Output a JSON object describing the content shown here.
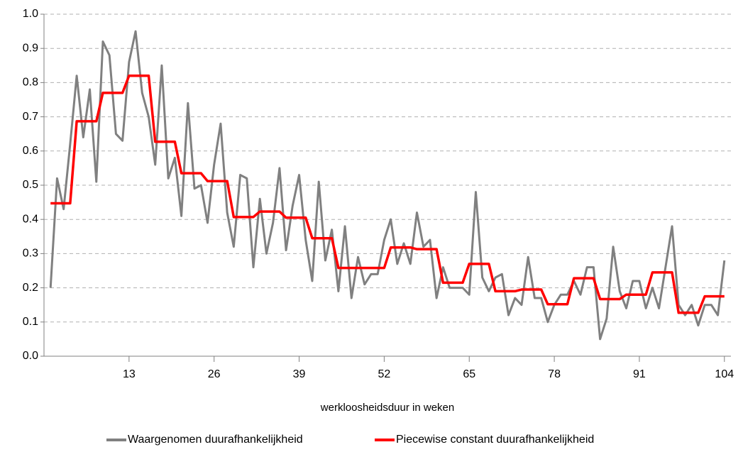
{
  "chart_data": {
    "type": "line",
    "x_label": "werkloosheidsduur in weken",
    "x": [
      1,
      2,
      3,
      4,
      5,
      6,
      7,
      8,
      9,
      10,
      11,
      12,
      13,
      14,
      15,
      16,
      17,
      18,
      19,
      20,
      21,
      22,
      23,
      24,
      25,
      26,
      27,
      28,
      29,
      30,
      31,
      32,
      33,
      34,
      35,
      36,
      37,
      38,
      39,
      40,
      41,
      42,
      43,
      44,
      45,
      46,
      47,
      48,
      49,
      50,
      51,
      52,
      53,
      54,
      55,
      56,
      57,
      58,
      59,
      60,
      61,
      62,
      63,
      64,
      65,
      66,
      67,
      68,
      69,
      70,
      71,
      72,
      73,
      74,
      75,
      76,
      77,
      78,
      79,
      80,
      81,
      82,
      83,
      84,
      85,
      86,
      87,
      88,
      89,
      90,
      91,
      92,
      93,
      94,
      95,
      96,
      97,
      98,
      99,
      100,
      101,
      102,
      103,
      104
    ],
    "series": [
      {
        "name": "Waargenomen duurafhankelijkheid",
        "color": "#808080",
        "values": [
          0.2,
          0.52,
          0.43,
          0.62,
          0.82,
          0.64,
          0.78,
          0.51,
          0.92,
          0.88,
          0.65,
          0.63,
          0.86,
          0.95,
          0.77,
          0.7,
          0.56,
          0.85,
          0.52,
          0.58,
          0.41,
          0.74,
          0.49,
          0.5,
          0.39,
          0.56,
          0.68,
          0.42,
          0.32,
          0.53,
          0.52,
          0.26,
          0.46,
          0.3,
          0.39,
          0.55,
          0.31,
          0.44,
          0.53,
          0.34,
          0.22,
          0.51,
          0.28,
          0.37,
          0.19,
          0.38,
          0.17,
          0.29,
          0.21,
          0.24,
          0.24,
          0.34,
          0.4,
          0.27,
          0.33,
          0.27,
          0.42,
          0.32,
          0.34,
          0.17,
          0.26,
          0.2,
          0.2,
          0.2,
          0.18,
          0.48,
          0.23,
          0.19,
          0.23,
          0.24,
          0.12,
          0.17,
          0.15,
          0.29,
          0.17,
          0.17,
          0.1,
          0.15,
          0.18,
          0.18,
          0.22,
          0.18,
          0.26,
          0.26,
          0.05,
          0.11,
          0.32,
          0.19,
          0.14,
          0.22,
          0.22,
          0.14,
          0.2,
          0.14,
          0.26,
          0.38,
          0.15,
          0.12,
          0.15,
          0.09,
          0.15,
          0.15,
          0.12,
          0.28
        ]
      },
      {
        "name": "Piecewise constant duurafhankelijkheid",
        "color": "#ff0000",
        "values": [
          0.447,
          0.447,
          0.447,
          0.447,
          0.687,
          0.687,
          0.687,
          0.687,
          0.77,
          0.77,
          0.77,
          0.77,
          0.82,
          0.82,
          0.82,
          0.82,
          0.627,
          0.627,
          0.627,
          0.627,
          0.535,
          0.535,
          0.535,
          0.535,
          0.512,
          0.512,
          0.512,
          0.512,
          0.407,
          0.407,
          0.407,
          0.407,
          0.423,
          0.423,
          0.423,
          0.423,
          0.405,
          0.405,
          0.405,
          0.405,
          0.345,
          0.345,
          0.345,
          0.345,
          0.258,
          0.258,
          0.258,
          0.258,
          0.258,
          0.258,
          0.258,
          0.258,
          0.318,
          0.318,
          0.318,
          0.318,
          0.313,
          0.313,
          0.313,
          0.313,
          0.215,
          0.215,
          0.215,
          0.215,
          0.27,
          0.27,
          0.27,
          0.27,
          0.19,
          0.19,
          0.19,
          0.19,
          0.195,
          0.195,
          0.195,
          0.195,
          0.152,
          0.152,
          0.152,
          0.152,
          0.228,
          0.228,
          0.228,
          0.228,
          0.167,
          0.167,
          0.167,
          0.167,
          0.18,
          0.18,
          0.18,
          0.18,
          0.245,
          0.245,
          0.245,
          0.245,
          0.127,
          0.127,
          0.127,
          0.127,
          0.175,
          0.175,
          0.175,
          0.175
        ]
      }
    ],
    "xlim": [
      0,
      105
    ],
    "xticks": [
      13,
      26,
      39,
      52,
      65,
      78,
      91,
      104
    ],
    "ylim": [
      0,
      1
    ],
    "yticks": [
      {
        "value": 0,
        "label": "0.0"
      },
      0.1,
      0.2,
      0.3,
      0.4,
      0.5,
      0.6,
      0.7,
      0.8,
      0.9,
      {
        "value": 1,
        "label": "1.0"
      }
    ],
    "grid": true,
    "legend": "bottom"
  }
}
